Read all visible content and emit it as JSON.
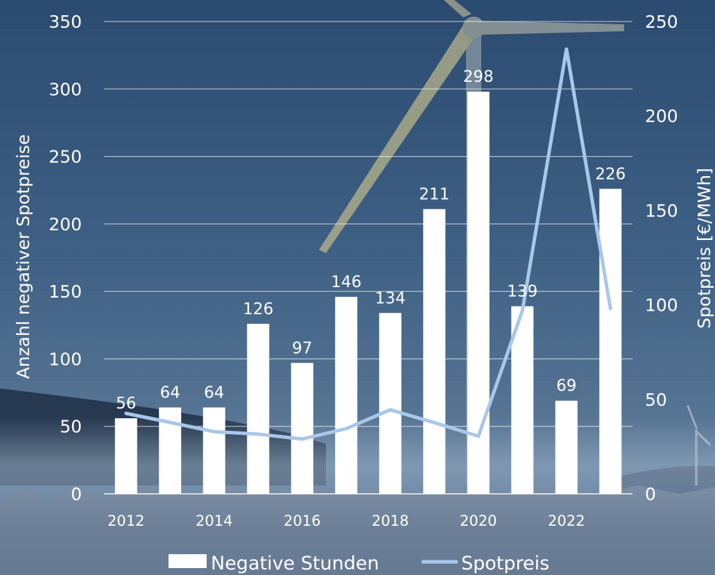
{
  "chart_data": {
    "type": "bar+line",
    "categories": [
      "2012",
      "2013",
      "2014",
      "2015",
      "2016",
      "2017",
      "2018",
      "2019",
      "2020",
      "2021",
      "2022",
      "2023"
    ],
    "x_tick_labels": [
      "2012",
      "2014",
      "2016",
      "2018",
      "2020",
      "2022"
    ],
    "series": [
      {
        "name": "Negative Stunden",
        "type": "bar",
        "axis": "left",
        "values": [
          56,
          64,
          64,
          126,
          97,
          146,
          134,
          211,
          298,
          139,
          69,
          226
        ],
        "labels": [
          "56",
          "64",
          "64",
          "126",
          "97",
          "146",
          "134",
          "211",
          "298",
          "139",
          "69",
          "226"
        ]
      },
      {
        "name": "Spotpreis",
        "type": "line",
        "axis": "right",
        "values": [
          42.6,
          37.8,
          32.9,
          31.6,
          29.0,
          34.5,
          44.5,
          37.7,
          30.5,
          97.0,
          235.4,
          98.0
        ]
      }
    ],
    "y_left": {
      "label": "Anzahl negativer Spotpreise",
      "min": 0,
      "max": 350,
      "ticks": [
        "0",
        "50",
        "100",
        "150",
        "200",
        "250",
        "300",
        "350"
      ]
    },
    "y_right": {
      "label": "Spotpreis [€/MWh]",
      "min": 0,
      "max": 250,
      "ticks": [
        "0",
        "50",
        "100",
        "150",
        "200",
        "250"
      ]
    },
    "grid": true,
    "legend": {
      "position": "bottom",
      "entries": [
        "Negative Stunden",
        "Spotpreis"
      ]
    },
    "colors": {
      "bar": "#ffffff",
      "line": "#a9c7e8",
      "text": "#ffffff",
      "grid": "#ffffff"
    }
  }
}
